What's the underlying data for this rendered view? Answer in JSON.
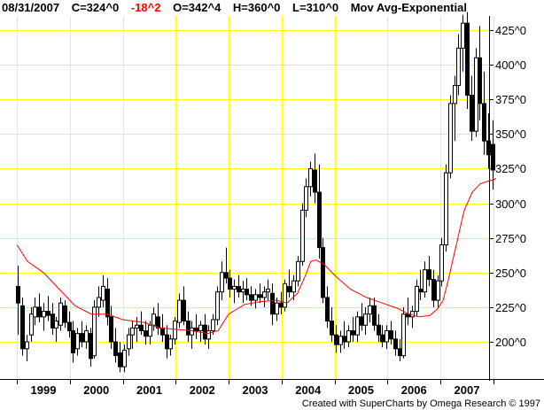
{
  "header": {
    "date": "08/31/2007",
    "close": "C=324^0",
    "change": "-18^2",
    "open": "O=342^4",
    "high": "H=360^0",
    "low": "L=310^0",
    "indicator": "Mov Avg-Exponential"
  },
  "colors": {
    "grid": "#ffff00",
    "candle": "#000000",
    "moving_average": "#ff0000",
    "change_text": "#ff0000"
  },
  "credit": "Created with SuperCharts by Omega Research © 1997",
  "chart_data": {
    "type": "candlestick",
    "x_tick_labels": [
      "1999",
      "2000",
      "2001",
      "2002",
      "2003",
      "2004",
      "2005",
      "2006",
      "2007"
    ],
    "y_tick_labels": [
      "200^0",
      "225^0",
      "250^0",
      "275^0",
      "300^0",
      "325^0",
      "350^0",
      "375^0",
      "400^0",
      "425^0"
    ],
    "y_ticks": [
      200,
      225,
      250,
      275,
      300,
      325,
      350,
      375,
      400,
      425
    ],
    "ylim": [
      180,
      440
    ],
    "xlim": [
      1998.5,
      2007.75
    ],
    "grid": true,
    "moving_average": {
      "name": "Mov Avg-Exponential",
      "x": [
        1998.5,
        1998.7,
        1999.0,
        1999.3,
        1999.6,
        1999.9,
        2000.2,
        2000.5,
        2000.9,
        2001.2,
        2001.5,
        2001.8,
        2002.1,
        2002.3,
        2002.5,
        2002.8,
        2003.1,
        2003.4,
        2003.6,
        2003.8,
        2003.95,
        2004.05,
        2004.15,
        2004.3,
        2004.5,
        2004.8,
        2005.1,
        2005.4,
        2005.7,
        2005.9,
        2006.1,
        2006.3,
        2006.45,
        2006.55,
        2006.65,
        2006.8,
        2006.95,
        2007.1,
        2007.25,
        2007.4,
        2007.5,
        2007.55
      ],
      "y": [
        270,
        258,
        250,
        238,
        226,
        220,
        220,
        216,
        214,
        210,
        209,
        208,
        206,
        208,
        220,
        227,
        229,
        230,
        228,
        235,
        248,
        258,
        259,
        256,
        248,
        238,
        232,
        228,
        224,
        220,
        218,
        219,
        224,
        230,
        245,
        270,
        295,
        308,
        314,
        316,
        317,
        318
      ]
    },
    "candles": [
      {
        "x": 1998.52,
        "o": 240,
        "h": 255,
        "l": 205,
        "c": 228
      },
      {
        "x": 1998.6,
        "o": 226,
        "h": 232,
        "l": 190,
        "c": 195
      },
      {
        "x": 1998.68,
        "o": 195,
        "h": 205,
        "l": 186,
        "c": 200
      },
      {
        "x": 1998.76,
        "o": 205,
        "h": 225,
        "l": 200,
        "c": 220
      },
      {
        "x": 1998.84,
        "o": 218,
        "h": 232,
        "l": 212,
        "c": 225
      },
      {
        "x": 1998.92,
        "o": 225,
        "h": 235,
        "l": 214,
        "c": 218
      },
      {
        "x": 1999.0,
        "o": 218,
        "h": 228,
        "l": 208,
        "c": 222
      },
      {
        "x": 1999.08,
        "o": 222,
        "h": 233,
        "l": 215,
        "c": 219
      },
      {
        "x": 1999.16,
        "o": 220,
        "h": 228,
        "l": 205,
        "c": 210
      },
      {
        "x": 1999.24,
        "o": 210,
        "h": 218,
        "l": 200,
        "c": 215
      },
      {
        "x": 1999.32,
        "o": 212,
        "h": 232,
        "l": 208,
        "c": 228
      },
      {
        "x": 1999.4,
        "o": 226,
        "h": 230,
        "l": 210,
        "c": 214
      },
      {
        "x": 1999.48,
        "o": 214,
        "h": 222,
        "l": 203,
        "c": 208
      },
      {
        "x": 1999.56,
        "o": 208,
        "h": 215,
        "l": 185,
        "c": 192
      },
      {
        "x": 1999.64,
        "o": 195,
        "h": 210,
        "l": 190,
        "c": 206
      },
      {
        "x": 1999.72,
        "o": 206,
        "h": 215,
        "l": 196,
        "c": 200
      },
      {
        "x": 1999.8,
        "o": 200,
        "h": 212,
        "l": 195,
        "c": 208
      },
      {
        "x": 1999.88,
        "o": 206,
        "h": 210,
        "l": 182,
        "c": 188
      },
      {
        "x": 1999.96,
        "o": 190,
        "h": 230,
        "l": 188,
        "c": 225
      },
      {
        "x": 2000.04,
        "o": 225,
        "h": 240,
        "l": 218,
        "c": 232
      },
      {
        "x": 2000.12,
        "o": 230,
        "h": 248,
        "l": 225,
        "c": 240
      },
      {
        "x": 2000.2,
        "o": 238,
        "h": 246,
        "l": 212,
        "c": 218
      },
      {
        "x": 2000.28,
        "o": 218,
        "h": 226,
        "l": 195,
        "c": 200
      },
      {
        "x": 2000.36,
        "o": 200,
        "h": 210,
        "l": 185,
        "c": 190
      },
      {
        "x": 2000.44,
        "o": 192,
        "h": 200,
        "l": 178,
        "c": 182
      },
      {
        "x": 2000.52,
        "o": 182,
        "h": 198,
        "l": 178,
        "c": 194
      },
      {
        "x": 2000.6,
        "o": 195,
        "h": 210,
        "l": 190,
        "c": 205
      },
      {
        "x": 2000.68,
        "o": 205,
        "h": 215,
        "l": 195,
        "c": 210
      },
      {
        "x": 2000.76,
        "o": 210,
        "h": 218,
        "l": 200,
        "c": 212
      },
      {
        "x": 2000.84,
        "o": 212,
        "h": 222,
        "l": 205,
        "c": 208
      },
      {
        "x": 2000.92,
        "o": 208,
        "h": 215,
        "l": 198,
        "c": 204
      },
      {
        "x": 2001.0,
        "o": 204,
        "h": 215,
        "l": 198,
        "c": 212
      },
      {
        "x": 2001.08,
        "o": 212,
        "h": 225,
        "l": 208,
        "c": 220
      },
      {
        "x": 2001.16,
        "o": 218,
        "h": 228,
        "l": 205,
        "c": 210
      },
      {
        "x": 2001.24,
        "o": 210,
        "h": 220,
        "l": 200,
        "c": 205
      },
      {
        "x": 2001.32,
        "o": 205,
        "h": 212,
        "l": 188,
        "c": 195
      },
      {
        "x": 2001.4,
        "o": 195,
        "h": 205,
        "l": 190,
        "c": 202
      },
      {
        "x": 2001.48,
        "o": 202,
        "h": 218,
        "l": 198,
        "c": 215
      },
      {
        "x": 2001.56,
        "o": 214,
        "h": 235,
        "l": 210,
        "c": 230
      },
      {
        "x": 2001.64,
        "o": 230,
        "h": 240,
        "l": 212,
        "c": 215
      },
      {
        "x": 2001.72,
        "o": 215,
        "h": 222,
        "l": 200,
        "c": 205
      },
      {
        "x": 2001.8,
        "o": 205,
        "h": 215,
        "l": 195,
        "c": 210
      },
      {
        "x": 2001.88,
        "o": 210,
        "h": 220,
        "l": 202,
        "c": 208
      },
      {
        "x": 2001.96,
        "o": 208,
        "h": 215,
        "l": 200,
        "c": 212
      },
      {
        "x": 2002.04,
        "o": 212,
        "h": 220,
        "l": 198,
        "c": 202
      },
      {
        "x": 2002.12,
        "o": 202,
        "h": 212,
        "l": 195,
        "c": 208
      },
      {
        "x": 2002.2,
        "o": 208,
        "h": 220,
        "l": 205,
        "c": 216
      },
      {
        "x": 2002.28,
        "o": 216,
        "h": 240,
        "l": 212,
        "c": 236
      },
      {
        "x": 2002.36,
        "o": 236,
        "h": 258,
        "l": 230,
        "c": 250
      },
      {
        "x": 2002.44,
        "o": 250,
        "h": 268,
        "l": 242,
        "c": 246
      },
      {
        "x": 2002.52,
        "o": 246,
        "h": 252,
        "l": 232,
        "c": 238
      },
      {
        "x": 2002.6,
        "o": 238,
        "h": 245,
        "l": 228,
        "c": 240
      },
      {
        "x": 2002.68,
        "o": 240,
        "h": 248,
        "l": 232,
        "c": 236
      },
      {
        "x": 2002.76,
        "o": 236,
        "h": 244,
        "l": 228,
        "c": 238
      },
      {
        "x": 2002.84,
        "o": 238,
        "h": 246,
        "l": 230,
        "c": 234
      },
      {
        "x": 2002.92,
        "o": 234,
        "h": 240,
        "l": 226,
        "c": 230
      },
      {
        "x": 2003.0,
        "o": 230,
        "h": 238,
        "l": 224,
        "c": 234
      },
      {
        "x": 2003.08,
        "o": 234,
        "h": 242,
        "l": 228,
        "c": 232
      },
      {
        "x": 2003.16,
        "o": 232,
        "h": 240,
        "l": 225,
        "c": 236
      },
      {
        "x": 2003.24,
        "o": 236,
        "h": 245,
        "l": 230,
        "c": 238
      },
      {
        "x": 2003.32,
        "o": 235,
        "h": 242,
        "l": 212,
        "c": 220
      },
      {
        "x": 2003.4,
        "o": 220,
        "h": 232,
        "l": 215,
        "c": 228
      },
      {
        "x": 2003.48,
        "o": 228,
        "h": 236,
        "l": 220,
        "c": 225
      },
      {
        "x": 2003.56,
        "o": 225,
        "h": 245,
        "l": 222,
        "c": 242
      },
      {
        "x": 2003.64,
        "o": 240,
        "h": 252,
        "l": 232,
        "c": 236
      },
      {
        "x": 2003.72,
        "o": 236,
        "h": 248,
        "l": 230,
        "c": 244
      },
      {
        "x": 2003.8,
        "o": 244,
        "h": 262,
        "l": 240,
        "c": 258
      },
      {
        "x": 2003.88,
        "o": 258,
        "h": 300,
        "l": 255,
        "c": 295
      },
      {
        "x": 2003.96,
        "o": 295,
        "h": 318,
        "l": 290,
        "c": 312
      },
      {
        "x": 2004.04,
        "o": 312,
        "h": 330,
        "l": 305,
        "c": 325
      },
      {
        "x": 2004.12,
        "o": 324,
        "h": 336,
        "l": 300,
        "c": 308
      },
      {
        "x": 2004.2,
        "o": 308,
        "h": 328,
        "l": 260,
        "c": 268
      },
      {
        "x": 2004.28,
        "o": 268,
        "h": 275,
        "l": 228,
        "c": 232
      },
      {
        "x": 2004.36,
        "o": 232,
        "h": 240,
        "l": 210,
        "c": 215
      },
      {
        "x": 2004.44,
        "o": 215,
        "h": 225,
        "l": 200,
        "c": 205
      },
      {
        "x": 2004.52,
        "o": 205,
        "h": 212,
        "l": 192,
        "c": 198
      },
      {
        "x": 2004.6,
        "o": 198,
        "h": 208,
        "l": 192,
        "c": 204
      },
      {
        "x": 2004.68,
        "o": 204,
        "h": 215,
        "l": 195,
        "c": 200
      },
      {
        "x": 2004.76,
        "o": 200,
        "h": 212,
        "l": 196,
        "c": 208
      },
      {
        "x": 2004.84,
        "o": 208,
        "h": 218,
        "l": 200,
        "c": 205
      },
      {
        "x": 2004.92,
        "o": 205,
        "h": 222,
        "l": 200,
        "c": 218
      },
      {
        "x": 2005.0,
        "o": 218,
        "h": 228,
        "l": 208,
        "c": 212
      },
      {
        "x": 2005.08,
        "o": 212,
        "h": 225,
        "l": 205,
        "c": 220
      },
      {
        "x": 2005.16,
        "o": 220,
        "h": 232,
        "l": 214,
        "c": 226
      },
      {
        "x": 2005.24,
        "o": 226,
        "h": 232,
        "l": 208,
        "c": 212
      },
      {
        "x": 2005.32,
        "o": 212,
        "h": 220,
        "l": 200,
        "c": 205
      },
      {
        "x": 2005.4,
        "o": 205,
        "h": 212,
        "l": 196,
        "c": 200
      },
      {
        "x": 2005.48,
        "o": 200,
        "h": 212,
        "l": 195,
        "c": 208
      },
      {
        "x": 2005.56,
        "o": 208,
        "h": 215,
        "l": 198,
        "c": 202
      },
      {
        "x": 2005.64,
        "o": 202,
        "h": 208,
        "l": 190,
        "c": 195
      },
      {
        "x": 2005.72,
        "o": 195,
        "h": 202,
        "l": 186,
        "c": 190
      },
      {
        "x": 2005.8,
        "o": 190,
        "h": 225,
        "l": 188,
        "c": 220
      },
      {
        "x": 2005.88,
        "o": 220,
        "h": 232,
        "l": 212,
        "c": 218
      },
      {
        "x": 2005.96,
        "o": 218,
        "h": 226,
        "l": 210,
        "c": 222
      },
      {
        "x": 2006.04,
        "o": 222,
        "h": 245,
        "l": 218,
        "c": 240
      },
      {
        "x": 2006.12,
        "o": 238,
        "h": 252,
        "l": 230,
        "c": 236
      },
      {
        "x": 2006.2,
        "o": 236,
        "h": 258,
        "l": 232,
        "c": 252
      },
      {
        "x": 2006.28,
        "o": 252,
        "h": 262,
        "l": 240,
        "c": 245
      },
      {
        "x": 2006.36,
        "o": 245,
        "h": 252,
        "l": 225,
        "c": 230
      },
      {
        "x": 2006.44,
        "o": 230,
        "h": 248,
        "l": 225,
        "c": 244
      },
      {
        "x": 2006.52,
        "o": 244,
        "h": 275,
        "l": 240,
        "c": 270
      },
      {
        "x": 2006.6,
        "o": 270,
        "h": 328,
        "l": 265,
        "c": 322
      },
      {
        "x": 2006.68,
        "o": 322,
        "h": 378,
        "l": 318,
        "c": 372
      },
      {
        "x": 2006.76,
        "o": 372,
        "h": 392,
        "l": 345,
        "c": 385
      },
      {
        "x": 2006.84,
        "o": 385,
        "h": 422,
        "l": 378,
        "c": 412
      },
      {
        "x": 2006.92,
        "o": 412,
        "h": 436,
        "l": 395,
        "c": 430
      },
      {
        "x": 2007.0,
        "o": 430,
        "h": 438,
        "l": 368,
        "c": 378
      },
      {
        "x": 2007.08,
        "o": 378,
        "h": 392,
        "l": 345,
        "c": 352
      },
      {
        "x": 2007.16,
        "o": 352,
        "h": 412,
        "l": 348,
        "c": 405
      },
      {
        "x": 2007.24,
        "o": 405,
        "h": 428,
        "l": 360,
        "c": 372
      },
      {
        "x": 2007.32,
        "o": 372,
        "h": 395,
        "l": 335,
        "c": 345
      },
      {
        "x": 2007.4,
        "o": 345,
        "h": 365,
        "l": 325,
        "c": 335
      },
      {
        "x": 2007.48,
        "o": 342.5,
        "h": 360,
        "l": 310,
        "c": 324
      }
    ]
  }
}
